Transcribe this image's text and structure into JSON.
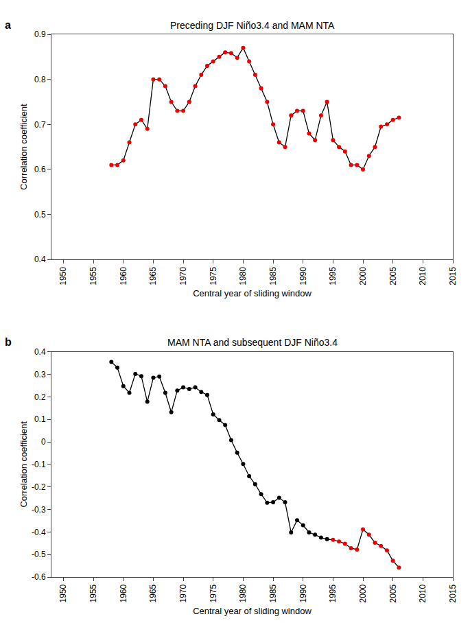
{
  "chart_data": [
    {
      "type": "line",
      "title": "Preceding DJF Niño3.4 and MAM NTA",
      "xlabel": "Central year of sliding window",
      "ylabel": "Corrеlation coefficient",
      "annotations": [
        "a"
      ],
      "x": [
        1958,
        1959,
        1960,
        1961,
        1962,
        1963,
        1964,
        1965,
        1966,
        1967,
        1968,
        1969,
        1970,
        1971,
        1972,
        1973,
        1974,
        1975,
        1976,
        1977,
        1978,
        1979,
        1980,
        1981,
        1982,
        1983,
        1984,
        1985,
        1986,
        1987,
        1988,
        1989,
        1990,
        1991,
        1992,
        1993,
        1994,
        1995,
        1996,
        1997,
        1998,
        1999,
        2000,
        2001,
        2002,
        2003,
        2004,
        2005,
        2006
      ],
      "values": [
        0.61,
        0.61,
        0.62,
        0.66,
        0.7,
        0.71,
        0.69,
        0.8,
        0.8,
        0.785,
        0.75,
        0.73,
        0.73,
        0.75,
        0.785,
        0.81,
        0.83,
        0.84,
        0.85,
        0.86,
        0.858,
        0.848,
        0.87,
        0.84,
        0.81,
        0.78,
        0.75,
        0.7,
        0.66,
        0.65,
        0.72,
        0.73,
        0.73,
        0.68,
        0.665,
        0.72,
        0.75,
        0.665,
        0.65,
        0.64,
        0.61,
        0.61,
        0.6,
        0.63,
        0.65,
        0.695,
        0.7,
        0.71,
        0.715
      ],
      "color": "#000000",
      "colors": [
        "#ee0000",
        "#ee0000",
        "#ee0000",
        "#ee0000",
        "#ee0000",
        "#ee0000",
        "#ee0000",
        "#ee0000",
        "#ee0000",
        "#ee0000",
        "#ee0000",
        "#ee0000",
        "#ee0000",
        "#ee0000",
        "#ee0000",
        "#ee0000",
        "#ee0000",
        "#ee0000",
        "#ee0000",
        "#ee0000",
        "#ee0000",
        "#ee0000",
        "#ee0000",
        "#ee0000",
        "#ee0000",
        "#ee0000",
        "#ee0000",
        "#ee0000",
        "#ee0000",
        "#ee0000",
        "#ee0000",
        "#ee0000",
        "#ee0000",
        "#ee0000",
        "#ee0000",
        "#ee0000",
        "#ee0000",
        "#ee0000",
        "#ee0000",
        "#ee0000",
        "#ee0000",
        "#ee0000",
        "#ee0000",
        "#ee0000",
        "#ee0000",
        "#ee0000",
        "#ee0000",
        "#ee0000",
        "#ee0000"
      ],
      "marker": "circle",
      "xlim": [
        1948,
        2015
      ],
      "xticks": [
        1950,
        1955,
        1960,
        1965,
        1970,
        1975,
        1980,
        1985,
        1990,
        1995,
        2000,
        2005,
        2010,
        2015
      ],
      "ylim": [
        0.4,
        0.9
      ],
      "yticks": [
        0.4,
        0.5,
        0.6,
        0.7,
        0.8,
        0.9
      ],
      "grid": false
    },
    {
      "type": "line",
      "title": "MAM NTA and subsequent DJF Niño3.4",
      "xlabel": "Central year of sliding window",
      "ylabel": "Corrеlation coefficient",
      "annotations": [
        "b"
      ],
      "x": [
        1958,
        1959,
        1960,
        1961,
        1962,
        1963,
        1964,
        1965,
        1966,
        1967,
        1968,
        1969,
        1970,
        1971,
        1972,
        1973,
        1974,
        1975,
        1976,
        1977,
        1978,
        1979,
        1980,
        1981,
        1982,
        1983,
        1984,
        1985,
        1986,
        1987,
        1988,
        1989,
        1990,
        1991,
        1992,
        1993,
        1994,
        1995,
        1996,
        1997,
        1998,
        1999,
        2000,
        2001,
        2002,
        2003,
        2004,
        2005,
        2006
      ],
      "values": [
        0.355,
        0.33,
        0.248,
        0.218,
        0.302,
        0.292,
        0.178,
        0.285,
        0.29,
        0.218,
        0.132,
        0.228,
        0.242,
        0.235,
        0.242,
        0.222,
        0.208,
        0.122,
        0.097,
        0.075,
        0.008,
        -0.048,
        -0.098,
        -0.152,
        -0.188,
        -0.232,
        -0.27,
        -0.268,
        -0.248,
        -0.268,
        -0.402,
        -0.348,
        -0.37,
        -0.402,
        -0.412,
        -0.425,
        -0.432,
        -0.435,
        -0.442,
        -0.452,
        -0.472,
        -0.478,
        -0.388,
        -0.412,
        -0.448,
        -0.462,
        -0.482,
        -0.528,
        -0.558
      ],
      "color": "#000000",
      "colors": [
        "#000000",
        "#000000",
        "#000000",
        "#000000",
        "#000000",
        "#000000",
        "#000000",
        "#000000",
        "#000000",
        "#000000",
        "#000000",
        "#000000",
        "#000000",
        "#000000",
        "#000000",
        "#000000",
        "#000000",
        "#000000",
        "#000000",
        "#000000",
        "#000000",
        "#000000",
        "#000000",
        "#000000",
        "#000000",
        "#000000",
        "#000000",
        "#000000",
        "#000000",
        "#000000",
        "#000000",
        "#000000",
        "#000000",
        "#000000",
        "#000000",
        "#000000",
        "#000000",
        "#ee0000",
        "#ee0000",
        "#ee0000",
        "#ee0000",
        "#ee0000",
        "#ee0000",
        "#ee0000",
        "#ee0000",
        "#ee0000",
        "#ee0000",
        "#ee0000",
        "#ee0000"
      ],
      "marker": "circle",
      "xlim": [
        1948,
        2015
      ],
      "xticks": [
        1950,
        1955,
        1960,
        1965,
        1970,
        1975,
        1980,
        1985,
        1990,
        1995,
        2000,
        2005,
        2010,
        2015
      ],
      "ylim": [
        -0.6,
        0.4
      ],
      "yticks": [
        -0.6,
        -0.5,
        -0.4,
        -0.3,
        -0.2,
        -0.1,
        0,
        0.1,
        0.2,
        0.3,
        0.4
      ],
      "grid": false
    }
  ]
}
